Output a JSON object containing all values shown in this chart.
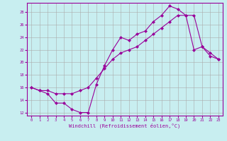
{
  "xlabel": "Windchill (Refroidissement éolien,°C)",
  "background_color": "#c8eef0",
  "line_color": "#990099",
  "xlim": [
    -0.5,
    23.5
  ],
  "ylim": [
    11.5,
    29.5
  ],
  "xticks": [
    0,
    1,
    2,
    3,
    4,
    5,
    6,
    7,
    8,
    9,
    10,
    11,
    12,
    13,
    14,
    15,
    16,
    17,
    18,
    19,
    20,
    21,
    22,
    23
  ],
  "yticks": [
    12,
    14,
    16,
    18,
    20,
    22,
    24,
    26,
    28
  ],
  "upper_x": [
    0,
    1,
    2,
    3,
    4,
    5,
    6,
    7,
    8,
    9,
    10,
    11,
    12,
    13,
    14,
    15,
    16,
    17,
    18,
    19,
    20,
    21,
    22,
    23
  ],
  "upper_y": [
    16.0,
    15.5,
    15.0,
    13.5,
    13.5,
    12.5,
    12.0,
    12.0,
    16.5,
    19.5,
    22.0,
    24.0,
    23.5,
    24.5,
    25.0,
    26.5,
    27.5,
    29.0,
    28.5,
    27.5,
    22.0,
    22.5,
    21.0,
    20.5
  ],
  "lower_x": [
    0,
    1,
    2,
    3,
    4,
    5,
    6,
    7,
    8,
    9,
    10,
    11,
    12,
    13,
    14,
    15,
    16,
    17,
    18,
    19,
    20,
    21,
    22,
    23
  ],
  "lower_y": [
    16.0,
    15.5,
    15.5,
    15.0,
    15.0,
    15.0,
    15.5,
    16.0,
    17.5,
    19.0,
    20.5,
    21.5,
    22.0,
    22.5,
    23.5,
    24.5,
    25.5,
    26.5,
    27.5,
    27.5,
    27.5,
    22.5,
    21.5,
    20.5
  ],
  "grid_color": "#aaaaaa",
  "marker_size": 2.5,
  "linewidth": 0.8
}
